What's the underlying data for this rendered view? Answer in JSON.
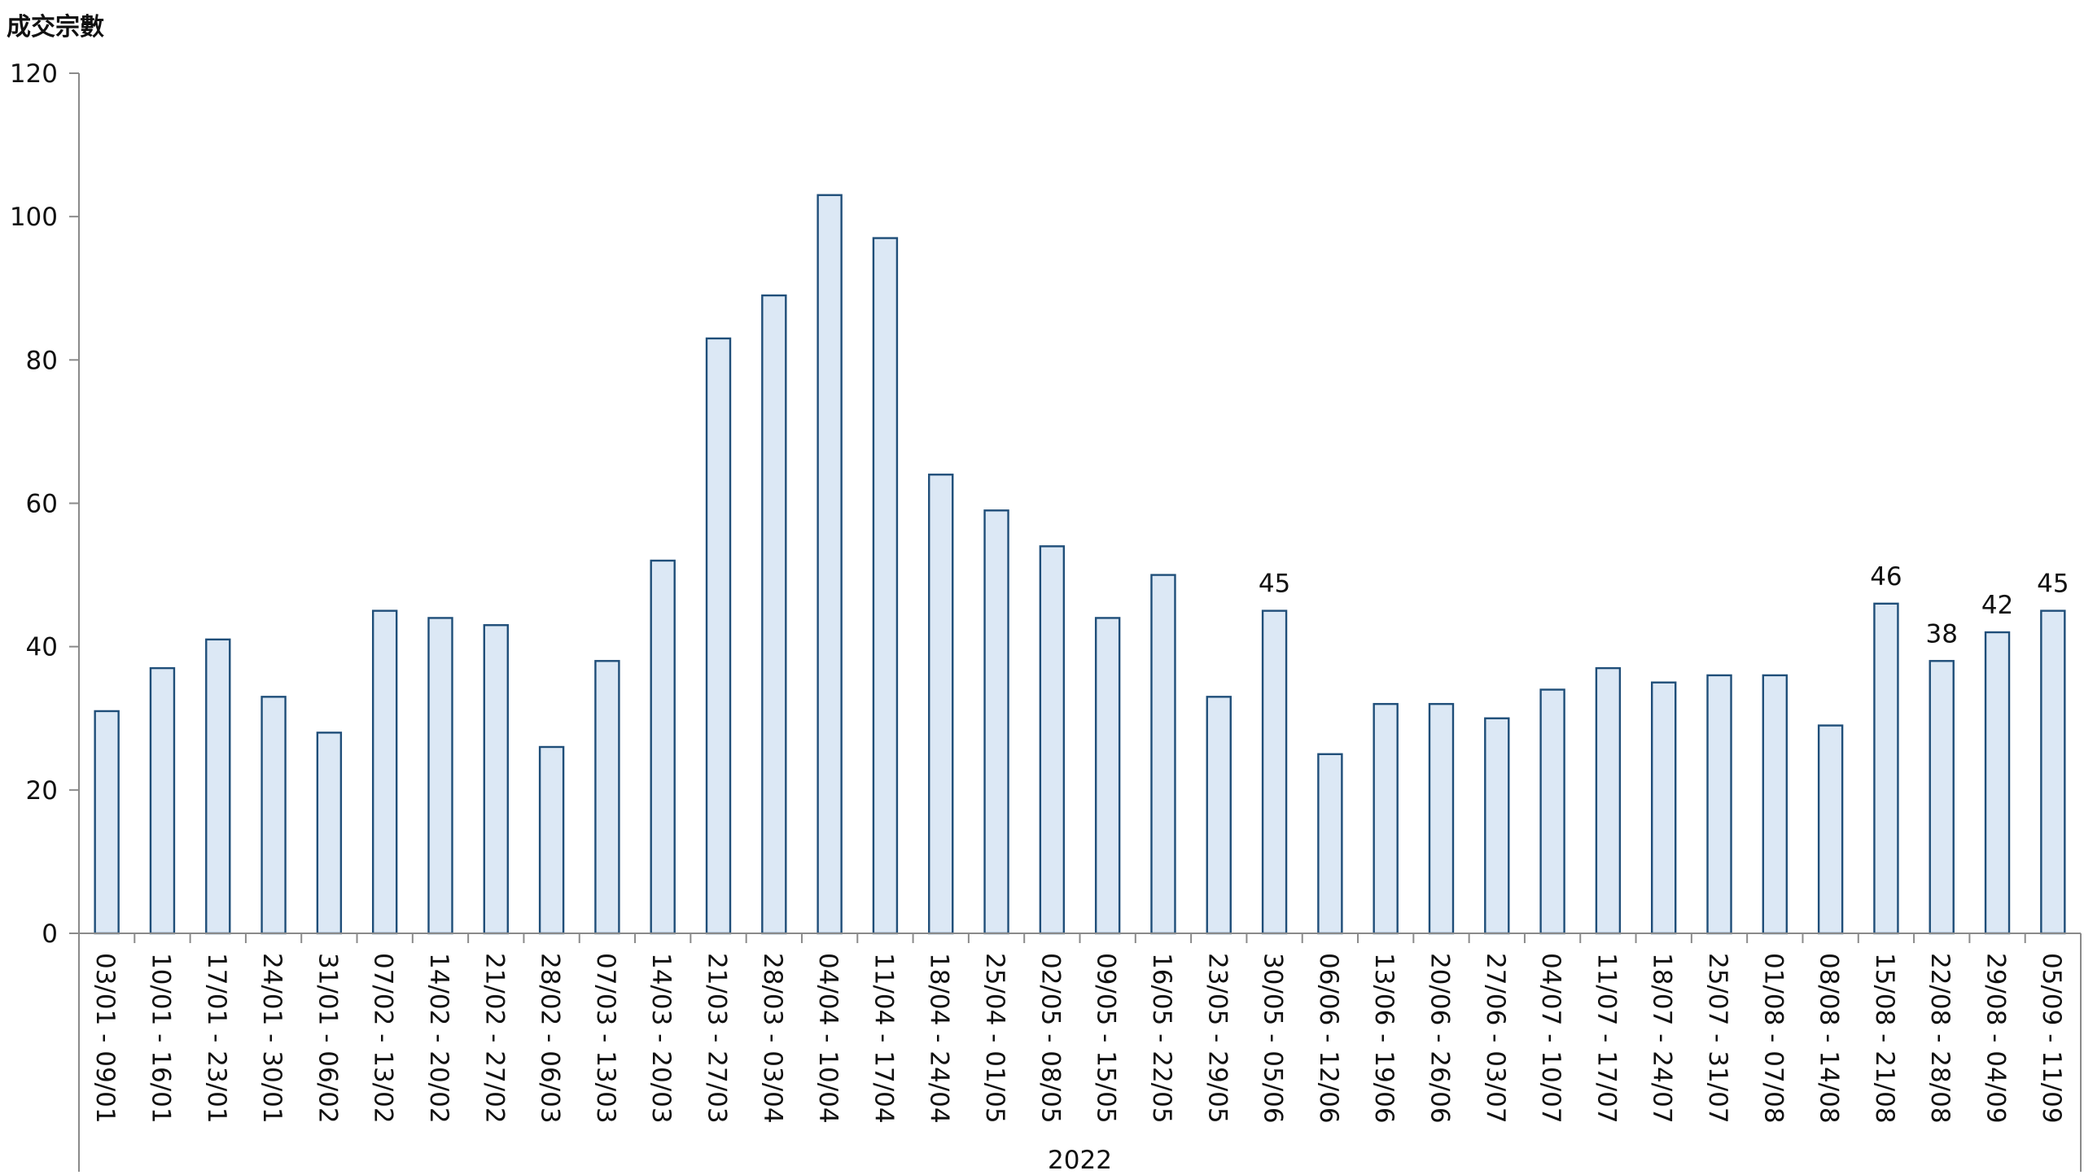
{
  "chart_data": {
    "type": "bar",
    "title": "",
    "ylabel": "成交宗數",
    "xlabel": "",
    "x_group_label": "2022",
    "ylim": [
      0,
      120
    ],
    "yticks": [
      0,
      20,
      40,
      60,
      80,
      100,
      120
    ],
    "grid": false,
    "legend": "none",
    "bar_fill": "#dce8f5",
    "bar_stroke": "#1f4e79",
    "axis_color": "#8a8a8a",
    "categories": [
      "03/01 - 09/01",
      "10/01 - 16/01",
      "17/01 - 23/01",
      "24/01 - 30/01",
      "31/01 - 06/02",
      "07/02 - 13/02",
      "14/02 - 20/02",
      "21/02 - 27/02",
      "28/02 - 06/03",
      "07/03 - 13/03",
      "14/03 - 20/03",
      "21/03 - 27/03",
      "28/03 - 03/04",
      "04/04 - 10/04",
      "11/04 - 17/04",
      "18/04 - 24/04",
      "25/04 - 01/05",
      "02/05 - 08/05",
      "09/05 - 15/05",
      "16/05 - 22/05",
      "23/05 - 29/05",
      "30/05 - 05/06",
      "06/06 - 12/06",
      "13/06 - 19/06",
      "20/06 - 26/06",
      "27/06 - 03/07",
      "04/07 - 10/07",
      "11/07 - 17/07",
      "18/07 - 24/07",
      "25/07 - 31/07",
      "01/08 - 07/08",
      "08/08 - 14/08",
      "15/08 - 21/08",
      "22/08 - 28/08",
      "29/08 - 04/09",
      "05/09 - 11/09"
    ],
    "values": [
      31,
      37,
      41,
      33,
      28,
      45,
      44,
      43,
      26,
      38,
      52,
      83,
      89,
      103,
      97,
      64,
      59,
      54,
      44,
      50,
      33,
      45,
      25,
      32,
      32,
      30,
      34,
      37,
      35,
      36,
      36,
      29,
      46,
      38,
      42,
      45
    ],
    "data_labels": [
      {
        "index": 21,
        "text": "45"
      },
      {
        "index": 32,
        "text": "46"
      },
      {
        "index": 33,
        "text": "38"
      },
      {
        "index": 34,
        "text": "42"
      },
      {
        "index": 35,
        "text": "45"
      }
    ]
  }
}
